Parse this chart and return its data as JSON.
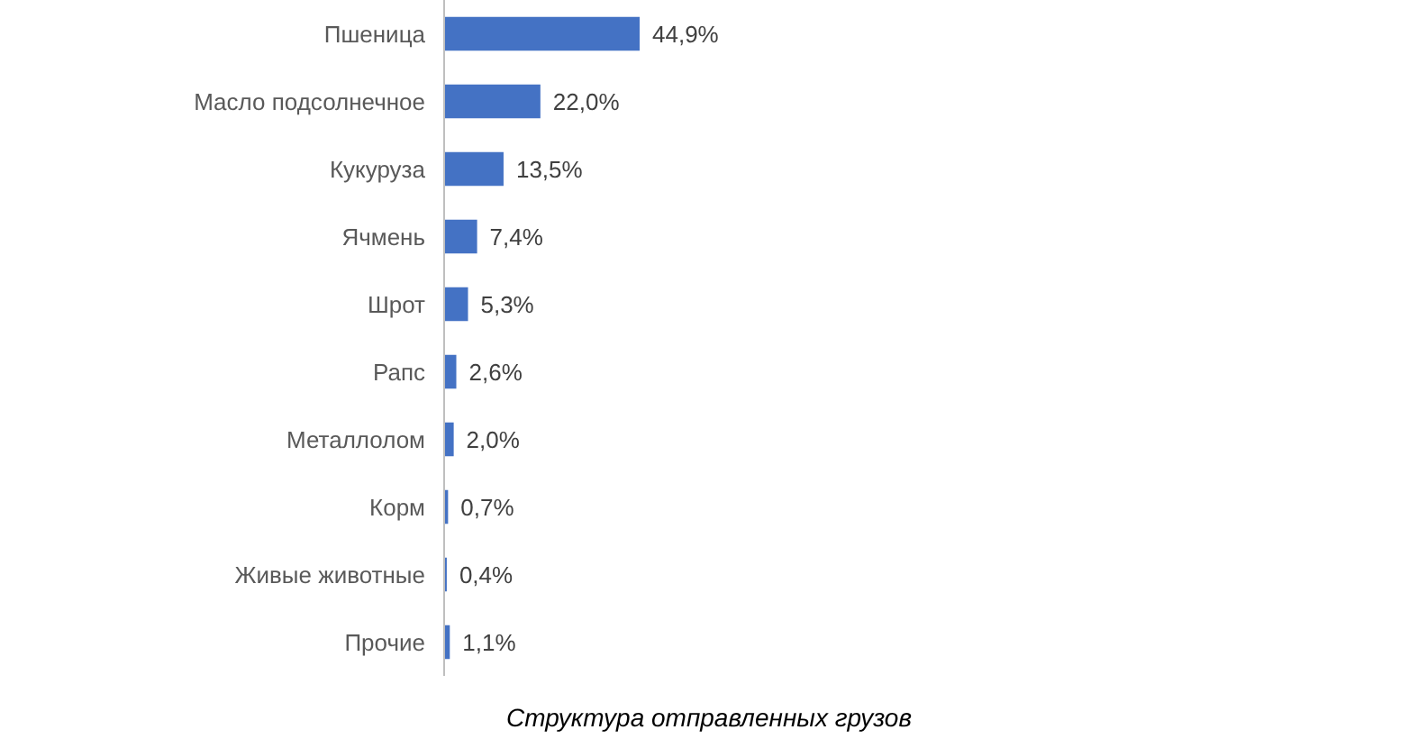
{
  "chart_data": {
    "type": "bar",
    "orientation": "horizontal",
    "title": "Структура отправленных грузов",
    "categories": [
      "Пшеница",
      "Масло подсолнечное",
      "Кукуруза",
      "Ячмень",
      "Шрот",
      "Рапс",
      "Металлолом",
      "Корм",
      "Живые животные",
      "Прочие"
    ],
    "values": [
      44.9,
      22.0,
      13.5,
      7.4,
      5.3,
      2.6,
      2.0,
      0.7,
      0.4,
      1.1
    ],
    "value_labels": [
      "44,9%",
      "22,0%",
      "13,5%",
      "7,4%",
      "5,3%",
      "2,6%",
      "2,0%",
      "0,7%",
      "0,4%",
      "1,1%"
    ],
    "color": "#4472c4"
  }
}
